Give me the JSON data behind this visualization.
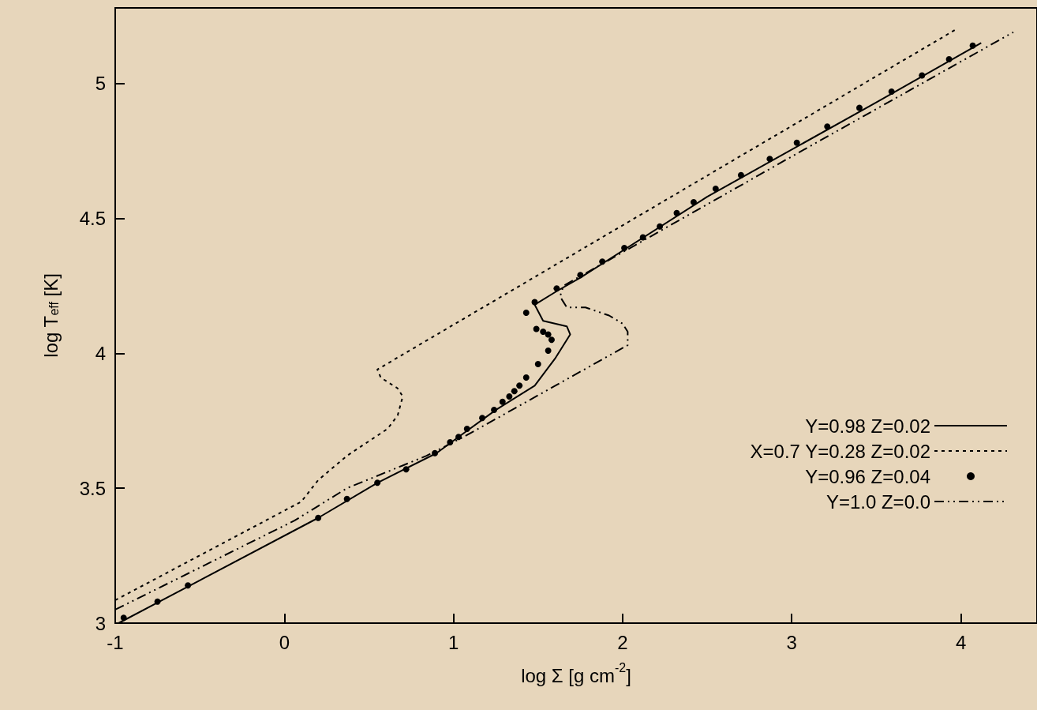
{
  "chart_data": {
    "type": "line",
    "xlabel": "log Σ [g cm$^{-2}$]",
    "ylabel": "log T$_{eff}$ [K]",
    "xlim": [
      -1,
      4.45
    ],
    "xticks": [
      -1,
      0,
      1,
      2,
      3,
      4
    ],
    "ylim": [
      3,
      5.28
    ],
    "yticks": [
      3,
      3.5,
      4,
      4.5,
      5
    ],
    "grid": false,
    "legend": "right",
    "series": [
      {
        "name": "Y=0.98 Z=0.02",
        "color": "#000000",
        "line_style": "solid",
        "marker": "none",
        "x": [
          -0.98,
          0.2,
          0.55,
          0.9,
          1.03,
          1.25,
          1.48,
          1.6,
          1.69,
          1.67,
          1.53,
          1.48,
          1.61,
          1.75,
          2.5,
          3.5,
          4.12
        ],
        "values": [
          3.0,
          3.39,
          3.52,
          3.63,
          3.69,
          3.79,
          3.88,
          3.98,
          4.07,
          4.1,
          4.12,
          4.18,
          4.23,
          4.28,
          4.58,
          4.93,
          5.15
        ]
      },
      {
        "name": "X=0.7 Y=0.28 Z=0.02",
        "color": "#000000",
        "line_style": "dashed",
        "marker": "none",
        "x": [
          -1,
          0.1,
          0.2,
          0.37,
          0.61,
          0.67,
          0.7,
          0.67,
          0.57,
          0.55,
          3.97
        ],
        "values": [
          3.085,
          3.45,
          3.53,
          3.62,
          3.72,
          3.77,
          3.84,
          3.87,
          3.91,
          3.94,
          5.2
        ]
      },
      {
        "name": "Y=0.96 Z=0.04",
        "type": "scatter",
        "color": "#000000",
        "marker": "circle",
        "x": [
          -0.95,
          -0.75,
          -0.57,
          0.2,
          0.37,
          0.55,
          0.72,
          0.89,
          0.98,
          1.03,
          1.08,
          1.17,
          1.24,
          1.29,
          1.33,
          1.36,
          1.39,
          1.43,
          1.5,
          1.56,
          1.58,
          1.56,
          1.53,
          1.49,
          1.43,
          1.48,
          1.61,
          1.75,
          1.88,
          2.01,
          2.12,
          2.22,
          2.32,
          2.42,
          2.55,
          2.7,
          2.87,
          3.03,
          3.21,
          3.4,
          3.59,
          3.77,
          3.93,
          4.07
        ],
        "values": [
          3.02,
          3.08,
          3.14,
          3.39,
          3.46,
          3.52,
          3.57,
          3.63,
          3.67,
          3.69,
          3.72,
          3.76,
          3.79,
          3.82,
          3.84,
          3.86,
          3.88,
          3.91,
          3.96,
          4.01,
          4.05,
          4.07,
          4.08,
          4.09,
          4.15,
          4.19,
          4.24,
          4.29,
          4.34,
          4.39,
          4.43,
          4.47,
          4.52,
          4.56,
          4.61,
          4.66,
          4.72,
          4.78,
          4.84,
          4.91,
          4.97,
          5.03,
          5.09,
          5.14
        ]
      },
      {
        "name": "Y=1.0 Z=0.0",
        "color": "#000000",
        "line_style": "dashdot",
        "marker": "none",
        "x": [
          -1,
          0.06,
          0.37,
          0.84,
          1.06,
          2.03,
          2.03,
          2.0,
          1.92,
          1.78,
          1.67,
          1.63,
          1.65,
          3.03,
          4.31
        ],
        "values": [
          3.05,
          3.38,
          3.5,
          3.62,
          3.69,
          4.03,
          4.08,
          4.11,
          4.14,
          4.17,
          4.17,
          4.21,
          4.25,
          4.74,
          5.19
        ]
      }
    ]
  }
}
